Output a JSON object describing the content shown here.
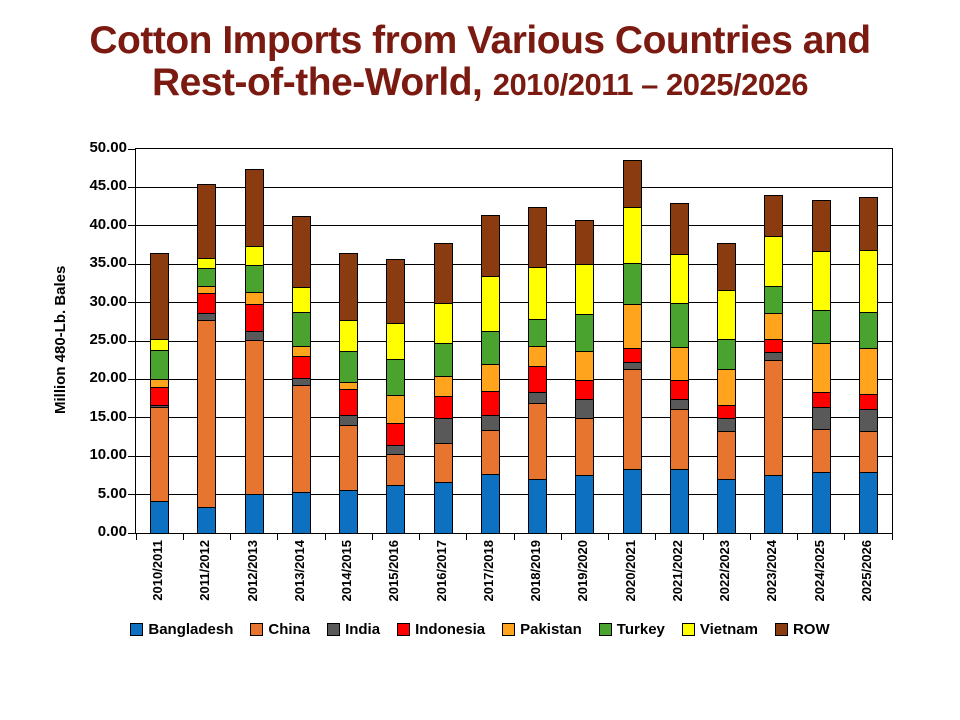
{
  "title": {
    "line1": "Cotton Imports from Various Countries and",
    "line2_main": "Rest-of-the-World, ",
    "line2_sub": "2010/2011 – 2025/2026",
    "color": "#7B1A10"
  },
  "chart_data": {
    "type": "bar",
    "stacked": true,
    "title": "Cotton Imports from Various Countries and Rest-of-the-World, 2010/2011 – 2025/2026",
    "xlabel": "",
    "ylabel": "Million 480-Lb. Bales",
    "ylim": [
      0,
      50
    ],
    "ytick_step": 5,
    "ytick_labels": [
      "0.00",
      "5.00",
      "10.00",
      "15.00",
      "20.00",
      "25.00",
      "30.00",
      "35.00",
      "40.00",
      "45.00",
      "50.00"
    ],
    "grid": true,
    "legend_position": "bottom",
    "categories": [
      "2010/2011",
      "2011/2012",
      "2012/2013",
      "2013/2014",
      "2014/2015",
      "2015/2016",
      "2016/2017",
      "2017/2018",
      "2018/2019",
      "2019/2020",
      "2020/2021",
      "2021/2022",
      "2022/2023",
      "2023/2024",
      "2024/2025",
      "2025/2026"
    ],
    "series": [
      {
        "name": "Bangladesh",
        "color": "#0E70C1",
        "values": [
          4.2,
          3.4,
          5.1,
          5.3,
          5.6,
          6.3,
          6.7,
          7.7,
          7.0,
          7.6,
          8.4,
          8.4,
          7.0,
          7.6,
          8.0,
          8.0
        ]
      },
      {
        "name": "China",
        "color": "#E8752F",
        "values": [
          12.2,
          24.4,
          20.0,
          14.0,
          8.5,
          4.0,
          5.0,
          5.7,
          9.9,
          7.4,
          12.9,
          7.8,
          6.3,
          14.9,
          5.5,
          5.3
        ]
      },
      {
        "name": "India",
        "color": "#595959",
        "values": [
          0.3,
          0.8,
          1.2,
          0.9,
          1.3,
          1.2,
          3.3,
          2.0,
          1.4,
          2.4,
          1.0,
          1.2,
          1.7,
          1.1,
          2.9,
          2.9
        ]
      },
      {
        "name": "Indonesia",
        "color": "#FE0000",
        "values": [
          2.3,
          2.6,
          3.5,
          2.8,
          3.3,
          2.8,
          2.8,
          3.1,
          3.4,
          2.5,
          1.8,
          2.5,
          1.7,
          1.6,
          2.0,
          1.9
        ]
      },
      {
        "name": "Pakistan",
        "color": "#FFA41C",
        "values": [
          1.1,
          1.0,
          1.6,
          1.3,
          0.9,
          3.7,
          2.6,
          3.5,
          2.6,
          3.8,
          5.7,
          4.3,
          4.6,
          3.4,
          6.3,
          6.0
        ]
      },
      {
        "name": "Turkey",
        "color": "#4BA32F",
        "values": [
          3.7,
          2.3,
          3.5,
          4.5,
          4.1,
          4.7,
          4.3,
          4.3,
          3.6,
          4.8,
          5.3,
          5.8,
          4.0,
          3.6,
          4.3,
          4.7
        ]
      },
      {
        "name": "Vietnam",
        "color": "#FFFF00",
        "values": [
          1.4,
          1.3,
          2.5,
          3.2,
          4.1,
          4.6,
          5.2,
          7.2,
          6.8,
          6.5,
          7.3,
          6.3,
          6.4,
          6.5,
          7.7,
          8.0
        ]
      },
      {
        "name": "ROW",
        "color": "#8B3B10",
        "values": [
          11.2,
          9.6,
          10.0,
          9.3,
          8.7,
          8.4,
          7.8,
          7.9,
          7.7,
          5.7,
          6.2,
          6.7,
          6.0,
          5.3,
          6.6,
          7.0
        ]
      }
    ]
  }
}
